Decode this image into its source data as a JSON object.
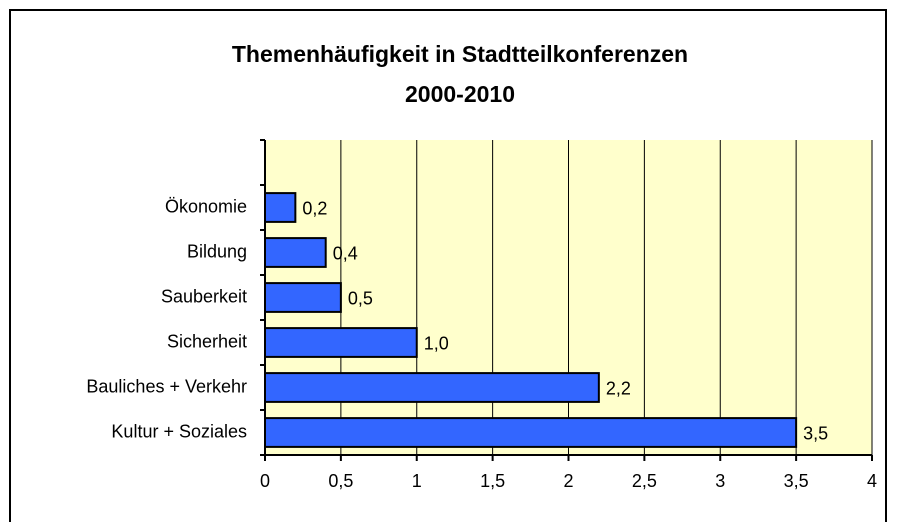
{
  "chart_data": {
    "type": "bar",
    "orientation": "horizontal",
    "title": "Themenhäufigkeit in Stadtteilkonferenzen",
    "subtitle": "2000-2010",
    "categories": [
      "Ökonomie",
      "Bildung",
      "Sauberkeit",
      "Sicherheit",
      "Bauliches + Verkehr",
      "Kultur + Soziales"
    ],
    "values": [
      0.2,
      0.4,
      0.5,
      1.0,
      2.2,
      3.5
    ],
    "value_labels": [
      "0,2",
      "0,4",
      "0,5",
      "1,0",
      "2,2",
      "3,5"
    ],
    "color": "#3366ff",
    "plot_background": "#ffffcc",
    "xlim": [
      0,
      4
    ],
    "xticks": [
      0,
      {
        "value": 0.5,
        "label": "0,5"
      },
      1,
      {
        "value": 1.5,
        "label": "1,5"
      },
      2,
      {
        "value": 2.5,
        "label": "2,5"
      },
      3,
      {
        "value": 3.5,
        "label": "3,5"
      },
      4
    ],
    "grid": true
  }
}
